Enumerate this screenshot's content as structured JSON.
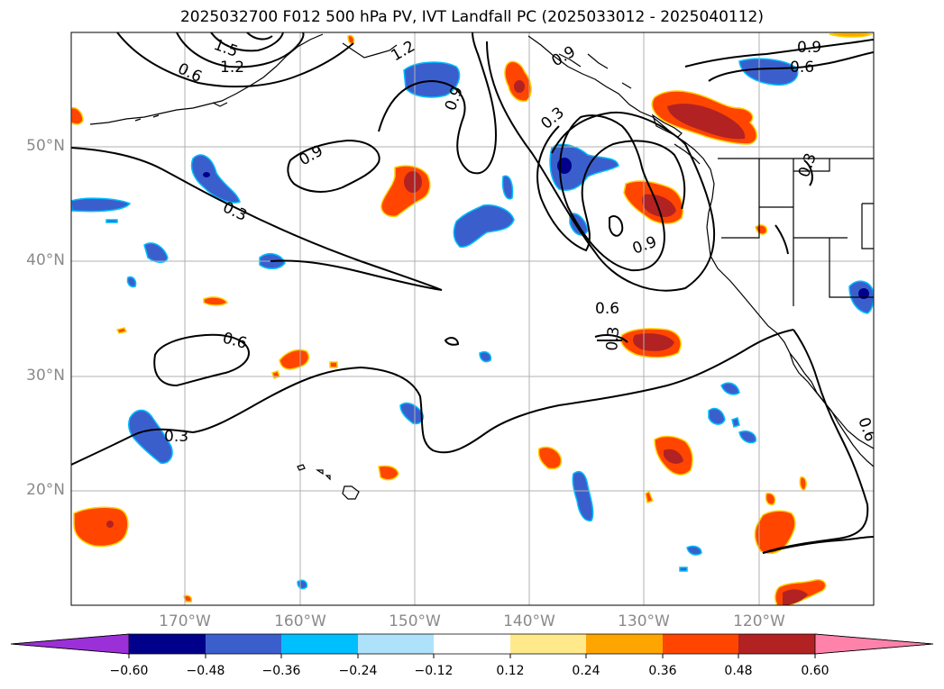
{
  "title": "2025032700 F012 500 hPa PV, IVT Landfall PC (2025033012 - 2025040112)",
  "latitude_labels": [
    "50°N",
    "40°N",
    "30°N",
    "20°N"
  ],
  "longitude_labels": [
    "170°W",
    "160°W",
    "150°W",
    "140°W",
    "130°W",
    "120°W"
  ],
  "contour_labels": [
    "1.5",
    "1.2",
    "0.6",
    "0.9",
    "1.2",
    "0.9",
    "0.9",
    "0.6",
    "0.9",
    "0.3",
    "0.3",
    "0.9",
    "0.3",
    "0.6",
    "0.6",
    "0.3",
    "0.3",
    "0.6"
  ],
  "colorbar": {
    "ticks": [
      "−0.60",
      "−0.48",
      "−0.36",
      "−0.24",
      "−0.12",
      "0.12",
      "0.24",
      "0.36",
      "0.48",
      "0.60"
    ],
    "colors": [
      "#9b30d9",
      "#00008b",
      "#3a5fcd",
      "#00bfff",
      "#aee2fa",
      "#ffffff",
      "#ffe98a",
      "#ffa500",
      "#ff4500",
      "#b22222",
      "#ff82ab"
    ]
  },
  "colors": {
    "contour": "#000000",
    "coast": "#000000",
    "grid": "#b0b0b0",
    "axis_label": "#8a8a8a"
  }
}
